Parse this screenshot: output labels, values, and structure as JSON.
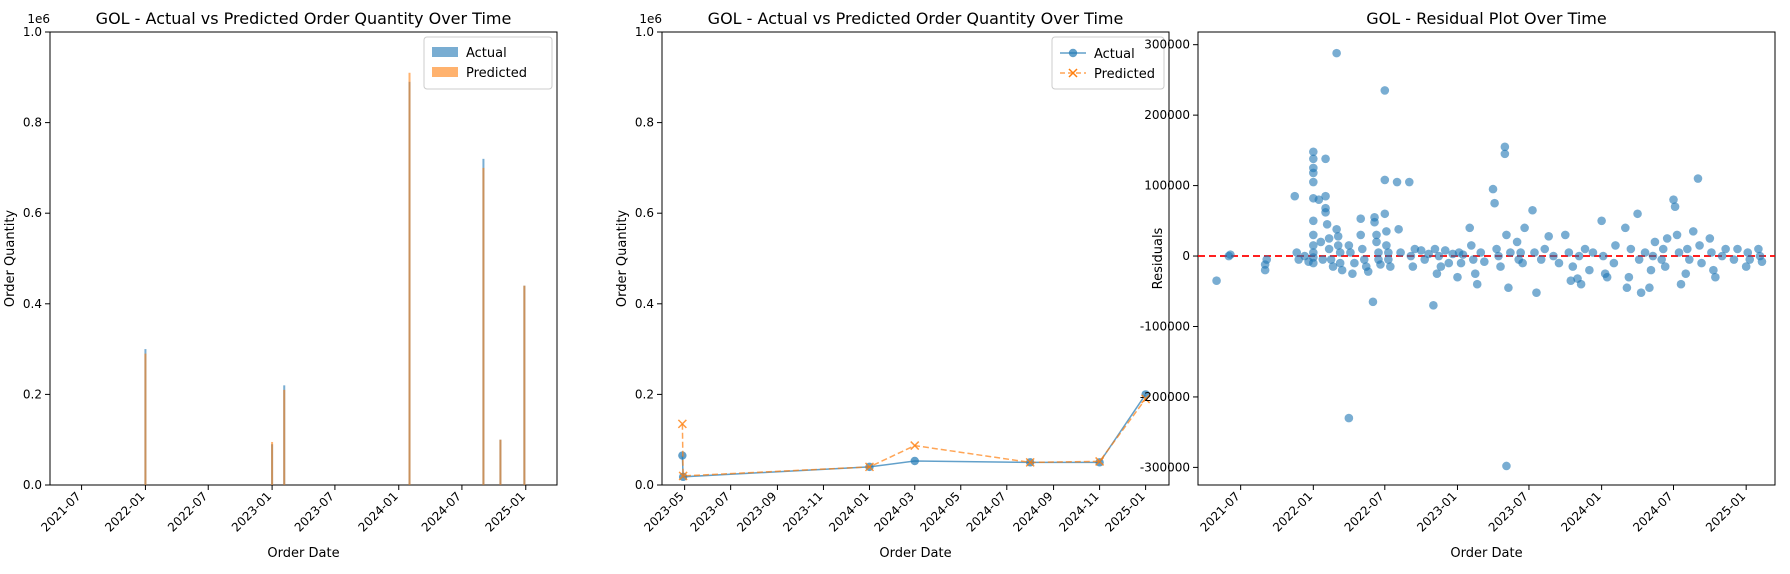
{
  "chart_data": [
    {
      "type": "bar",
      "title": "GOL - Actual vs Predicted Order Quantity Over Time",
      "xlabel": "Order Date",
      "ylabel": "Order Quantity",
      "offset_label": "1e6",
      "ylim": [
        0,
        1.0
      ],
      "yticks": [
        "0.0",
        "0.2",
        "0.4",
        "0.6",
        "0.8",
        "1.0"
      ],
      "xticks": [
        "2021-07",
        "2022-01",
        "2022-07",
        "2023-01",
        "2023-07",
        "2024-01",
        "2024-07",
        "2025-01"
      ],
      "legend_position": "top-right",
      "colors": {
        "actual": "#1f77b4",
        "predicted": "#ff7f0e"
      },
      "series": [
        {
          "name": "Actual",
          "points": [
            {
              "x": "2022-01-01",
              "y": 0.3
            },
            {
              "x": "2023-01-01",
              "y": 0.09
            },
            {
              "x": "2023-02-05",
              "y": 0.22
            },
            {
              "x": "2024-02-01",
              "y": 0.89
            },
            {
              "x": "2024-09-01",
              "y": 0.72
            },
            {
              "x": "2024-10-20",
              "y": 0.1
            },
            {
              "x": "2024-12-28",
              "y": 0.44
            }
          ]
        },
        {
          "name": "Predicted",
          "points": [
            {
              "x": "2022-01-01",
              "y": 0.29
            },
            {
              "x": "2023-01-01",
              "y": 0.095
            },
            {
              "x": "2023-02-05",
              "y": 0.21
            },
            {
              "x": "2024-02-01",
              "y": 0.91
            },
            {
              "x": "2024-09-01",
              "y": 0.7
            },
            {
              "x": "2024-10-20",
              "y": 0.1
            },
            {
              "x": "2024-12-28",
              "y": 0.44
            }
          ]
        }
      ]
    },
    {
      "type": "line",
      "title": "GOL - Actual vs Predicted Order Quantity Over Time",
      "xlabel": "Order Date",
      "ylabel": "Order Quantity",
      "offset_label": "1e6",
      "ylim": [
        0,
        1.0
      ],
      "yticks": [
        "0.0",
        "0.2",
        "0.4",
        "0.6",
        "0.8",
        "1.0"
      ],
      "xticks": [
        "2023-05",
        "2023-07",
        "2023-09",
        "2023-11",
        "2024-01",
        "2024-03",
        "2024-05",
        "2024-07",
        "2024-09",
        "2024-11",
        "2025-01"
      ],
      "legend_position": "top-right",
      "colors": {
        "actual": "#1f77b4",
        "predicted": "#ff7f0e"
      },
      "series": [
        {
          "name": "Actual",
          "marker": "circle",
          "line": "solid",
          "points": [
            {
              "x": "2023-04-28",
              "y": 0.065
            },
            {
              "x": "2023-04-29",
              "y": 0.018
            },
            {
              "x": "2024-01-01",
              "y": 0.04
            },
            {
              "x": "2024-03-01",
              "y": 0.053
            },
            {
              "x": "2024-08-01",
              "y": 0.05
            },
            {
              "x": "2024-11-01",
              "y": 0.05
            },
            {
              "x": "2025-01-01",
              "y": 0.2
            }
          ]
        },
        {
          "name": "Predicted",
          "marker": "x",
          "line": "dashed",
          "points": [
            {
              "x": "2023-04-28",
              "y": 0.135
            },
            {
              "x": "2023-04-29",
              "y": 0.02
            },
            {
              "x": "2024-01-01",
              "y": 0.04
            },
            {
              "x": "2024-03-01",
              "y": 0.087
            },
            {
              "x": "2024-08-01",
              "y": 0.05
            },
            {
              "x": "2024-11-01",
              "y": 0.052
            },
            {
              "x": "2025-01-01",
              "y": 0.19
            }
          ]
        }
      ]
    },
    {
      "type": "scatter",
      "title": "GOL - Residual Plot Over Time",
      "xlabel": "Order Date",
      "ylabel": "Residuals",
      "ylim": [
        -325000,
        318000
      ],
      "yticks": [
        -300000,
        -200000,
        -100000,
        0,
        100000,
        200000,
        300000
      ],
      "xticks": [
        "2021-07",
        "2022-01",
        "2022-07",
        "2023-01",
        "2023-07",
        "2024-01",
        "2024-07",
        "2025-01"
      ],
      "reference_line": {
        "y": 0,
        "color": "#ff0000",
        "style": "dashed"
      },
      "colors": {
        "points": "#1f77b4"
      },
      "series": [
        {
          "points": [
            [
              "2021-05-01",
              -35000
            ],
            [
              "2021-06-01",
              0
            ],
            [
              "2021-06-05",
              2000
            ],
            [
              "2021-09-01",
              -20000
            ],
            [
              "2021-09-01",
              -12000
            ],
            [
              "2021-09-05",
              -5000
            ],
            [
              "2021-11-15",
              85000
            ],
            [
              "2021-11-20",
              5000
            ],
            [
              "2021-11-25",
              -5000
            ],
            [
              "2021-12-10",
              0
            ],
            [
              "2021-12-20",
              -8000
            ],
            [
              "2022-01-01",
              148000
            ],
            [
              "2022-01-01",
              138000
            ],
            [
              "2022-01-01",
              125000
            ],
            [
              "2022-01-01",
              118000
            ],
            [
              "2022-01-01",
              105000
            ],
            [
              "2022-01-01",
              82000
            ],
            [
              "2022-01-01",
              50000
            ],
            [
              "2022-01-01",
              30000
            ],
            [
              "2022-01-01",
              15000
            ],
            [
              "2022-01-01",
              5000
            ],
            [
              "2022-01-01",
              -2000
            ],
            [
              "2022-01-01",
              -10000
            ],
            [
              "2022-01-15",
              80000
            ],
            [
              "2022-01-20",
              20000
            ],
            [
              "2022-01-25",
              -5000
            ],
            [
              "2022-02-01",
              138000
            ],
            [
              "2022-02-01",
              85000
            ],
            [
              "2022-02-01",
              68000
            ],
            [
              "2022-02-01",
              62000
            ],
            [
              "2022-02-05",
              45000
            ],
            [
              "2022-02-10",
              25000
            ],
            [
              "2022-02-10",
              10000
            ],
            [
              "2022-02-15",
              -5000
            ],
            [
              "2022-02-20",
              -15000
            ],
            [
              "2022-03-01",
              288000
            ],
            [
              "2022-03-01",
              38000
            ],
            [
              "2022-03-05",
              28000
            ],
            [
              "2022-03-05",
              15000
            ],
            [
              "2022-03-10",
              5000
            ],
            [
              "2022-03-10",
              -10000
            ],
            [
              "2022-03-15",
              -20000
            ],
            [
              "2022-04-01",
              -230000
            ],
            [
              "2022-04-01",
              15000
            ],
            [
              "2022-04-05",
              5000
            ],
            [
              "2022-04-10",
              -25000
            ],
            [
              "2022-04-15",
              -10000
            ],
            [
              "2022-05-01",
              53000
            ],
            [
              "2022-05-01",
              30000
            ],
            [
              "2022-05-05",
              10000
            ],
            [
              "2022-05-10",
              -5000
            ],
            [
              "2022-05-15",
              -15000
            ],
            [
              "2022-05-20",
              -22000
            ],
            [
              "2022-06-01",
              -65000
            ],
            [
              "2022-06-05",
              55000
            ],
            [
              "2022-06-05",
              48000
            ],
            [
              "2022-06-10",
              30000
            ],
            [
              "2022-06-10",
              20000
            ],
            [
              "2022-06-15",
              5000
            ],
            [
              "2022-06-15",
              -5000
            ],
            [
              "2022-06-20",
              -12000
            ],
            [
              "2022-07-01",
              235000
            ],
            [
              "2022-07-01",
              108000
            ],
            [
              "2022-07-01",
              60000
            ],
            [
              "2022-07-05",
              35000
            ],
            [
              "2022-07-05",
              15000
            ],
            [
              "2022-07-10",
              5000
            ],
            [
              "2022-07-10",
              -5000
            ],
            [
              "2022-07-15",
              -15000
            ],
            [
              "2022-08-01",
              105000
            ],
            [
              "2022-08-05",
              38000
            ],
            [
              "2022-08-10",
              5000
            ],
            [
              "2022-09-01",
              105000
            ],
            [
              "2022-09-05",
              0
            ],
            [
              "2022-09-10",
              -15000
            ],
            [
              "2022-09-15",
              10000
            ],
            [
              "2022-10-01",
              8000
            ],
            [
              "2022-10-10",
              -5000
            ],
            [
              "2022-10-20",
              3000
            ],
            [
              "2022-11-01",
              -70000
            ],
            [
              "2022-11-05",
              10000
            ],
            [
              "2022-11-10",
              -25000
            ],
            [
              "2022-11-15",
              0
            ],
            [
              "2022-11-20",
              -15000
            ],
            [
              "2022-12-01",
              8000
            ],
            [
              "2022-12-10",
              -10000
            ],
            [
              "2022-12-20",
              3000
            ],
            [
              "2023-01-01",
              -30000
            ],
            [
              "2023-01-05",
              5000
            ],
            [
              "2023-01-10",
              -10000
            ],
            [
              "2023-01-15",
              2000
            ],
            [
              "2023-02-01",
              40000
            ],
            [
              "2023-02-05",
              15000
            ],
            [
              "2023-02-10",
              -5000
            ],
            [
              "2023-02-15",
              -25000
            ],
            [
              "2023-02-20",
              -40000
            ],
            [
              "2023-03-01",
              5000
            ],
            [
              "2023-03-10",
              -8000
            ],
            [
              "2023-04-01",
              95000
            ],
            [
              "2023-04-05",
              75000
            ],
            [
              "2023-04-10",
              10000
            ],
            [
              "2023-04-15",
              0
            ],
            [
              "2023-04-20",
              -15000
            ],
            [
              "2023-05-01",
              155000
            ],
            [
              "2023-05-01",
              145000
            ],
            [
              "2023-05-05",
              30000
            ],
            [
              "2023-05-05",
              -298000
            ],
            [
              "2023-05-10",
              -45000
            ],
            [
              "2023-05-15",
              5000
            ],
            [
              "2023-06-01",
              20000
            ],
            [
              "2023-06-05",
              -5000
            ],
            [
              "2023-06-10",
              5000
            ],
            [
              "2023-06-15",
              -10000
            ],
            [
              "2023-06-20",
              40000
            ],
            [
              "2023-07-10",
              65000
            ],
            [
              "2023-07-15",
              5000
            ],
            [
              "2023-07-20",
              -52000
            ],
            [
              "2023-08-01",
              -5000
            ],
            [
              "2023-08-10",
              10000
            ],
            [
              "2023-08-20",
              28000
            ],
            [
              "2023-09-01",
              0
            ],
            [
              "2023-09-15",
              -10000
            ],
            [
              "2023-10-01",
              30000
            ],
            [
              "2023-10-10",
              5000
            ],
            [
              "2023-10-15",
              -35000
            ],
            [
              "2023-10-20",
              -15000
            ],
            [
              "2023-11-01",
              -32000
            ],
            [
              "2023-11-05",
              0
            ],
            [
              "2023-11-10",
              -40000
            ],
            [
              "2023-11-20",
              10000
            ],
            [
              "2023-12-01",
              -20000
            ],
            [
              "2023-12-10",
              5000
            ],
            [
              "2024-01-01",
              50000
            ],
            [
              "2024-01-05",
              0
            ],
            [
              "2024-01-10",
              -25000
            ],
            [
              "2024-01-15",
              -30000
            ],
            [
              "2024-02-01",
              -10000
            ],
            [
              "2024-02-05",
              15000
            ],
            [
              "2024-03-01",
              40000
            ],
            [
              "2024-03-05",
              -45000
            ],
            [
              "2024-03-10",
              -30000
            ],
            [
              "2024-03-15",
              10000
            ],
            [
              "2024-04-01",
              60000
            ],
            [
              "2024-04-05",
              -5000
            ],
            [
              "2024-04-10",
              -52000
            ],
            [
              "2024-04-20",
              5000
            ],
            [
              "2024-05-01",
              -45000
            ],
            [
              "2024-05-05",
              -20000
            ],
            [
              "2024-05-10",
              0
            ],
            [
              "2024-05-15",
              20000
            ],
            [
              "2024-06-01",
              -5000
            ],
            [
              "2024-06-05",
              10000
            ],
            [
              "2024-06-10",
              -15000
            ],
            [
              "2024-06-15",
              25000
            ],
            [
              "2024-07-01",
              80000
            ],
            [
              "2024-07-05",
              70000
            ],
            [
              "2024-07-10",
              30000
            ],
            [
              "2024-07-15",
              5000
            ],
            [
              "2024-07-20",
              -40000
            ],
            [
              "2024-08-01",
              -25000
            ],
            [
              "2024-08-05",
              10000
            ],
            [
              "2024-08-10",
              -5000
            ],
            [
              "2024-08-20",
              35000
            ],
            [
              "2024-09-01",
              110000
            ],
            [
              "2024-09-05",
              15000
            ],
            [
              "2024-09-10",
              -10000
            ],
            [
              "2024-10-01",
              25000
            ],
            [
              "2024-10-05",
              5000
            ],
            [
              "2024-10-10",
              -20000
            ],
            [
              "2024-10-15",
              -30000
            ],
            [
              "2024-11-01",
              0
            ],
            [
              "2024-11-10",
              10000
            ],
            [
              "2024-12-01",
              -5000
            ],
            [
              "2024-12-10",
              10000
            ],
            [
              "2025-01-01",
              -15000
            ],
            [
              "2025-01-05",
              5000
            ],
            [
              "2025-01-10",
              -5000
            ],
            [
              "2025-02-01",
              10000
            ],
            [
              "2025-02-05",
              0
            ],
            [
              "2025-02-10",
              -8000
            ]
          ]
        }
      ]
    }
  ]
}
